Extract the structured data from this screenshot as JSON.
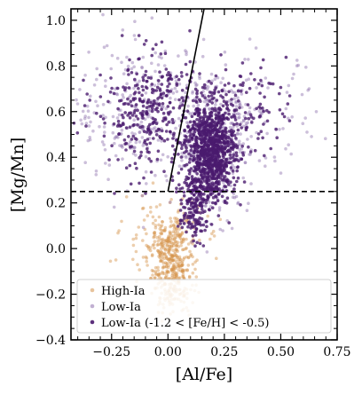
{
  "chart_data": {
    "type": "scatter",
    "xlabel": "[Al/Fe]",
    "ylabel": "[Mg/Mn]",
    "xlim": [
      -0.43,
      0.75
    ],
    "ylim": [
      -0.4,
      1.05
    ],
    "x_ticks": [
      -0.25,
      0.0,
      0.25,
      0.5,
      0.75
    ],
    "x_tick_labels": [
      "−0.25",
      "0.00",
      "0.25",
      "0.50",
      "0.75"
    ],
    "y_ticks": [
      -0.4,
      -0.2,
      0.0,
      0.2,
      0.4,
      0.6,
      0.8,
      1.0
    ],
    "y_tick_labels": [
      "−0.4",
      "−0.2",
      "0.0",
      "0.2",
      "0.4",
      "0.6",
      "0.8",
      "1.0"
    ],
    "grid": false,
    "legend_position": "lower-left",
    "dividing_lines": {
      "horizontal_dashed_y": 0.25,
      "sloped_solid": {
        "from": [
          0.0,
          0.25
        ],
        "to": [
          0.16,
          1.05
        ]
      }
    },
    "series": [
      {
        "name": "High-Ia",
        "color": "#d4924a",
        "alpha": 0.45,
        "distribution": [
          {
            "cx": 0.02,
            "cy": -0.08,
            "sx": 0.045,
            "sy": 0.1,
            "n": 380
          },
          {
            "cx": -0.03,
            "cy": 0.05,
            "sx": 0.09,
            "sy": 0.08,
            "n": 140
          }
        ]
      },
      {
        "name": "Low-Ia",
        "color": "#8e70ad",
        "alpha": 0.45,
        "distribution": [
          {
            "cx": 0.2,
            "cy": 0.45,
            "sx": 0.08,
            "sy": 0.14,
            "n": 380
          },
          {
            "cx": -0.12,
            "cy": 0.6,
            "sx": 0.15,
            "sy": 0.15,
            "n": 280
          },
          {
            "cx": 0.4,
            "cy": 0.58,
            "sx": 0.13,
            "sy": 0.12,
            "n": 90
          }
        ]
      },
      {
        "name": "Low-Ia (-1.2 < [Fe/H] < -0.5)",
        "color": "#4a1a6e",
        "alpha": 0.8,
        "distribution": [
          {
            "cx": 0.19,
            "cy": 0.42,
            "sx": 0.055,
            "sy": 0.11,
            "n": 950
          },
          {
            "cx": -0.08,
            "cy": 0.6,
            "sx": 0.12,
            "sy": 0.13,
            "n": 330
          },
          {
            "cx": 0.11,
            "cy": 0.17,
            "sx": 0.03,
            "sy": 0.07,
            "n": 140
          },
          {
            "cx": 0.34,
            "cy": 0.62,
            "sx": 0.09,
            "sy": 0.1,
            "n": 110
          }
        ]
      }
    ]
  }
}
